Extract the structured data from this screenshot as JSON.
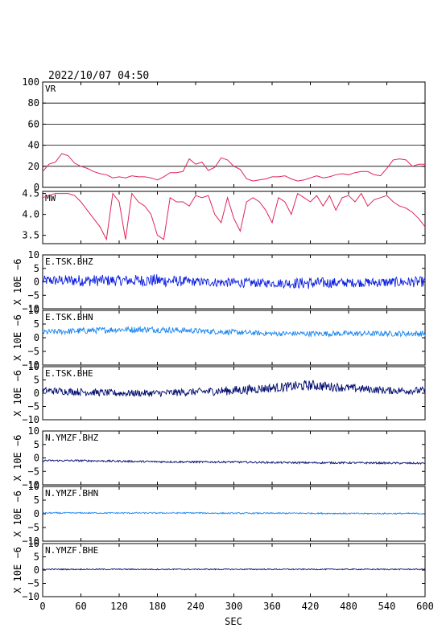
{
  "header": {
    "timestamp": "2022/10/07 04:50"
  },
  "xaxis": {
    "label": "SEC",
    "range": [
      0,
      600
    ],
    "ticks": [
      "0",
      "60",
      "120",
      "180",
      "240",
      "300",
      "360",
      "420",
      "480",
      "540",
      "600"
    ]
  },
  "colors": {
    "vr": "#e0245a",
    "ch1": "#0a1ee0",
    "ch2": "#1a86f0",
    "ch3": "#000a6e",
    "grid": "#000000"
  },
  "chart_data": [
    {
      "type": "line",
      "label": "VR",
      "ylim": [
        0,
        100
      ],
      "yticks": [
        "0",
        "20",
        "40",
        "60",
        "80",
        "100"
      ],
      "grid": true,
      "x": [
        0,
        10,
        20,
        30,
        40,
        50,
        60,
        70,
        80,
        90,
        100,
        110,
        120,
        130,
        140,
        150,
        160,
        170,
        180,
        190,
        200,
        210,
        220,
        230,
        240,
        250,
        260,
        270,
        280,
        290,
        300,
        310,
        320,
        330,
        340,
        350,
        360,
        370,
        380,
        390,
        400,
        410,
        420,
        430,
        440,
        450,
        460,
        470,
        480,
        490,
        500,
        510,
        520,
        530,
        540,
        550,
        560,
        570,
        580,
        590,
        600
      ],
      "y": [
        15,
        22,
        24,
        32,
        30,
        23,
        20,
        18,
        15,
        13,
        12,
        9,
        10,
        9,
        11,
        10,
        10,
        9,
        7,
        10,
        14,
        14,
        15,
        27,
        22,
        24,
        16,
        19,
        28,
        26,
        20,
        17,
        8,
        6,
        7,
        8,
        10,
        10,
        11,
        8,
        6,
        7,
        9,
        11,
        9,
        10,
        12,
        13,
        12,
        14,
        15,
        15,
        12,
        11,
        18,
        26,
        27,
        26,
        20,
        22,
        22
      ]
    },
    {
      "type": "line",
      "label": "MW",
      "ylim": [
        3.3,
        4.55
      ],
      "yticks": [
        "3.5",
        "4.0",
        "4.5"
      ],
      "grid": false,
      "x": [
        0,
        10,
        20,
        30,
        40,
        50,
        60,
        70,
        80,
        90,
        100,
        110,
        120,
        130,
        140,
        150,
        160,
        170,
        180,
        190,
        200,
        210,
        220,
        230,
        240,
        250,
        260,
        270,
        280,
        290,
        300,
        310,
        320,
        330,
        340,
        350,
        360,
        370,
        380,
        390,
        400,
        410,
        420,
        430,
        440,
        450,
        460,
        470,
        480,
        490,
        500,
        510,
        520,
        530,
        540,
        550,
        560,
        570,
        580,
        590,
        600
      ],
      "y": [
        4.4,
        4.45,
        4.5,
        4.5,
        4.5,
        4.45,
        4.3,
        4.1,
        3.9,
        3.7,
        3.4,
        4.5,
        4.3,
        3.4,
        4.5,
        4.3,
        4.2,
        4.0,
        3.5,
        3.4,
        4.4,
        4.3,
        4.3,
        4.2,
        4.45,
        4.4,
        4.45,
        4.0,
        3.8,
        4.4,
        3.9,
        3.6,
        4.3,
        4.4,
        4.3,
        4.1,
        3.8,
        4.4,
        4.3,
        4.0,
        4.5,
        4.4,
        4.3,
        4.45,
        4.2,
        4.45,
        4.1,
        4.4,
        4.45,
        4.3,
        4.5,
        4.2,
        4.35,
        4.4,
        4.45,
        4.3,
        4.2,
        4.15,
        4.05,
        3.9,
        3.7
      ]
    },
    {
      "type": "line",
      "label": "E.TSK.BHZ",
      "ylabel": "X 10E −6",
      "ylim": [
        -10,
        10
      ],
      "yticks": [
        "−10",
        "−5",
        "0",
        "5",
        "10"
      ],
      "grid": false,
      "x": [
        0,
        60,
        120,
        180,
        240,
        300,
        360,
        420,
        480,
        540,
        600
      ],
      "y": [
        0.5,
        0.5,
        0.5,
        0.5,
        0.0,
        -0.3,
        -0.5,
        -0.5,
        -0.3,
        -0.2,
        0.0
      ],
      "amplitude": [
        1.8,
        2.2,
        2.0,
        2.4,
        1.6,
        1.8,
        1.5,
        2.3,
        1.6,
        1.8,
        2.0
      ]
    },
    {
      "type": "line",
      "label": "E.TSK.BHN",
      "ylabel": "X 10E −6",
      "ylim": [
        -10,
        10
      ],
      "yticks": [
        "−10",
        "−5",
        "0",
        "5",
        "10"
      ],
      "grid": false,
      "x": [
        0,
        60,
        120,
        180,
        240,
        300,
        360,
        420,
        480,
        540,
        600
      ],
      "y": [
        2.0,
        2.5,
        3.0,
        3.0,
        2.5,
        2.0,
        1.5,
        1.5,
        1.5,
        1.5,
        1.5
      ],
      "amplitude": [
        1.0,
        1.2,
        1.1,
        1.2,
        1.0,
        1.0,
        0.9,
        1.0,
        1.0,
        1.0,
        1.1
      ]
    },
    {
      "type": "line",
      "label": "E.TSK.BHE",
      "ylabel": "X 10E −6",
      "ylim": [
        -10,
        10
      ],
      "yticks": [
        "−10",
        "−5",
        "0",
        "5",
        "10"
      ],
      "grid": false,
      "x": [
        0,
        60,
        120,
        180,
        240,
        300,
        360,
        420,
        480,
        540,
        600
      ],
      "y": [
        1.0,
        0.5,
        0.0,
        0.0,
        0.5,
        1.0,
        2.0,
        3.0,
        2.0,
        1.0,
        1.0
      ],
      "amplitude": [
        1.3,
        1.4,
        1.3,
        1.3,
        1.4,
        1.8,
        1.7,
        2.0,
        1.5,
        1.4,
        1.4
      ]
    },
    {
      "type": "line",
      "label": "N.YMZF.BHZ",
      "ylabel": "X 10E −6",
      "ylim": [
        -10,
        10
      ],
      "yticks": [
        "−10",
        "−5",
        "0",
        "5",
        "10"
      ],
      "grid": false,
      "x": [
        0,
        60,
        120,
        180,
        240,
        300,
        360,
        420,
        480,
        540,
        600
      ],
      "y": [
        -1.0,
        -1.0,
        -1.2,
        -1.4,
        -1.5,
        -1.5,
        -1.7,
        -1.8,
        -1.8,
        -1.9,
        -2.0
      ],
      "amplitude": [
        0.35,
        0.35,
        0.35,
        0.35,
        0.35,
        0.35,
        0.35,
        0.35,
        0.35,
        0.35,
        0.35
      ]
    },
    {
      "type": "line",
      "label": "N.YMZF.BHN",
      "ylabel": "X 10E −6",
      "ylim": [
        -10,
        10
      ],
      "yticks": [
        "−10",
        "−5",
        "0",
        "5",
        "10"
      ],
      "grid": false,
      "x": [
        0,
        60,
        120,
        180,
        240,
        300,
        360,
        420,
        480,
        540,
        600
      ],
      "y": [
        0.3,
        0.3,
        0.3,
        0.3,
        0.3,
        0.2,
        0.2,
        0.2,
        0.1,
        0.1,
        0.1
      ],
      "amplitude": [
        0.25,
        0.25,
        0.25,
        0.25,
        0.25,
        0.25,
        0.25,
        0.25,
        0.25,
        0.25,
        0.25
      ]
    },
    {
      "type": "line",
      "label": "N.YMZF.BHE",
      "ylabel": "X 10E −6",
      "ylim": [
        -10,
        10
      ],
      "yticks": [
        "−10",
        "−5",
        "0",
        "5",
        "10"
      ],
      "grid": false,
      "x": [
        0,
        60,
        120,
        180,
        240,
        300,
        360,
        420,
        480,
        540,
        600
      ],
      "y": [
        0.3,
        0.3,
        0.3,
        0.3,
        0.3,
        0.3,
        0.3,
        0.3,
        0.3,
        0.3,
        0.3
      ],
      "amplitude": [
        0.22,
        0.22,
        0.22,
        0.22,
        0.22,
        0.22,
        0.22,
        0.22,
        0.22,
        0.22,
        0.22
      ]
    }
  ]
}
